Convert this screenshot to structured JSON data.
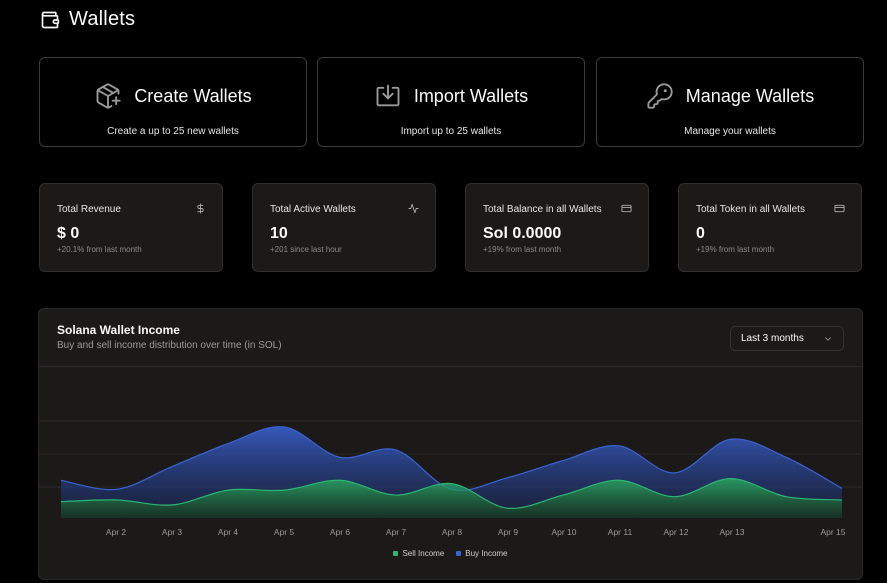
{
  "page": {
    "title": "Wallets"
  },
  "actions": [
    {
      "title": "Create Wallets",
      "subtitle": "Create a up to 25 new wallets",
      "icon": "package-plus-icon"
    },
    {
      "title": "Import Wallets",
      "subtitle": "Import up to 25 wallets",
      "icon": "download-tray-icon"
    },
    {
      "title": "Manage Wallets",
      "subtitle": "Manage your wallets",
      "icon": "key-icon"
    }
  ],
  "stats": [
    {
      "label": "Total Revenue",
      "value": "$ 0",
      "note": "+20.1% from last month",
      "icon": "dollar-icon"
    },
    {
      "label": "Total Active Wallets",
      "value": "10",
      "note": "+201 since last hour",
      "icon": "activity-icon"
    },
    {
      "label": "Total Balance in all Wallets",
      "value": "Sol 0.0000",
      "note": "+19% from last month",
      "icon": "credit-card-icon"
    },
    {
      "label": "Total Token in all Wallets",
      "value": "0",
      "note": "+19% from last month",
      "icon": "credit-card-icon"
    }
  ],
  "chart": {
    "title": "Solana Wallet Income",
    "subtitle": "Buy and sell income distribution over time (in SOL)",
    "range_select": {
      "value": "Last 3 months"
    },
    "legend": {
      "sell_label": "Sell Income",
      "buy_label": "Buy Income"
    }
  },
  "colors": {
    "background": "#000000",
    "card": "#1c1a18",
    "sell": "#2bb673",
    "buy": "#3a63d6"
  },
  "chart_data": {
    "type": "area",
    "title": "Solana Wallet Income",
    "subtitle": "Buy and sell income distribution over time (in SOL)",
    "x": [
      1,
      2,
      3,
      4,
      5,
      6,
      7,
      8,
      9,
      10,
      11,
      12,
      13,
      14,
      15
    ],
    "x_tick_labels": [
      "Apr 2",
      "Apr 3",
      "Apr 4",
      "Apr 5",
      "Apr 6",
      "Apr 7",
      "Apr 8",
      "Apr 9",
      "Apr 10",
      "Apr 11",
      "Apr 12",
      "Apr 13",
      "Apr 15"
    ],
    "stacked": true,
    "grid": "horizontal",
    "legend_position": "bottom-center",
    "series": [
      {
        "name": "Sell Income",
        "color": "#2bb673",
        "values": [
          20,
          22,
          16,
          34,
          34,
          46,
          28,
          42,
          12,
          28,
          46,
          26,
          48,
          26,
          22
        ]
      },
      {
        "name": "Buy Income",
        "color": "#3a63d6",
        "values": [
          26,
          13,
          47,
          57,
          77,
          28,
          55,
          -7,
          37,
          42,
          42,
          29,
          48,
          48,
          14
        ]
      }
    ]
  }
}
